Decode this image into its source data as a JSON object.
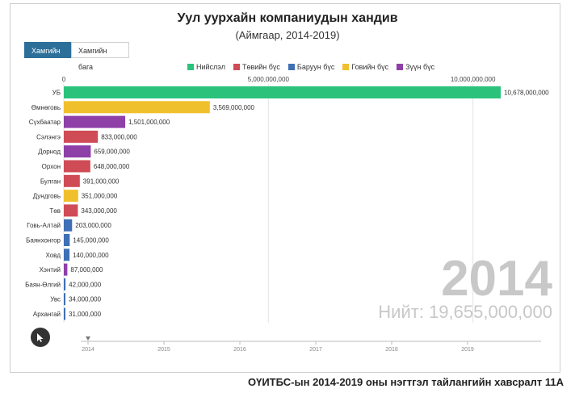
{
  "chart_data": {
    "type": "bar",
    "orientation": "horizontal",
    "title": "Уул уурхайн компаниудын хандив",
    "subtitle": "(Аймгаар, 2014-2019)",
    "categories": [
      "УБ",
      "Өмнөговь",
      "Сүхбаатар",
      "Сэлэнгэ",
      "Дорнод",
      "Орхон",
      "Булган",
      "Дундговь",
      "Төв",
      "Говь-Алтай",
      "Баянхонгор",
      "Ховд",
      "Хэнтий",
      "Баян-Өлгий",
      "Увс",
      "Архангай"
    ],
    "values": [
      10678000000,
      3569000000,
      1501000000,
      833000000,
      659000000,
      648000000,
      391000000,
      351000000,
      343000000,
      203000000,
      145000000,
      140000000,
      87000000,
      42000000,
      34000000,
      31000000
    ],
    "value_labels": [
      "10,678,000,000",
      "3,569,000,000",
      "1,501,000,000",
      "833,000,000",
      "659,000,000",
      "648,000,000",
      "391,000,000",
      "351,000,000",
      "343,000,000",
      "203,000,000",
      "145,000,000",
      "140,000,000",
      "87,000,000",
      "42,000,000",
      "34,000,000",
      "31,000,000"
    ],
    "region": [
      "Нийслэл",
      "Говийн бүс",
      "Зүүн бүс",
      "Төвийн бүс",
      "Зүүн бүс",
      "Төвийн бүс",
      "Төвийн бүс",
      "Говийн бүс",
      "Төвийн бүс",
      "Баруун бүс",
      "Баруун бүс",
      "Баруун бүс",
      "Зүүн бүс",
      "Баруун бүс",
      "Баруун бүс",
      "Баруун бүс"
    ],
    "legend": [
      {
        "name": "Нийслэл",
        "color": "#2bc27c"
      },
      {
        "name": "Төвийн бүс",
        "color": "#cf4b55"
      },
      {
        "name": "Баруун бүс",
        "color": "#3f6fb5"
      },
      {
        "name": "Говийн бүс",
        "color": "#f0c02c"
      },
      {
        "name": "Зүүн бүс",
        "color": "#8e3fa8"
      }
    ],
    "xlim": [
      0,
      11000000000
    ],
    "x_ticks": [
      0,
      5000000000,
      10000000000
    ],
    "x_tick_labels": [
      "0",
      "5,000,000,000",
      "10,000,000,000"
    ],
    "legend_position": "top",
    "grid": true,
    "year": "2014",
    "total_label": "Нийт: 19,655,000,000",
    "timeline_years": [
      "2014",
      "2015",
      "2016",
      "2017",
      "2018",
      "2019"
    ],
    "current_year": "2014"
  },
  "controls": {
    "most_label": "Хамгийн их",
    "least_label": "Хамгийн бага"
  },
  "footer": {
    "caption": "ОҮИТБС-ын 2014-2019 оны нэгтгэл тайлангийн хавсралт 11А"
  },
  "colors": {
    "accent": "#2c6f98"
  }
}
